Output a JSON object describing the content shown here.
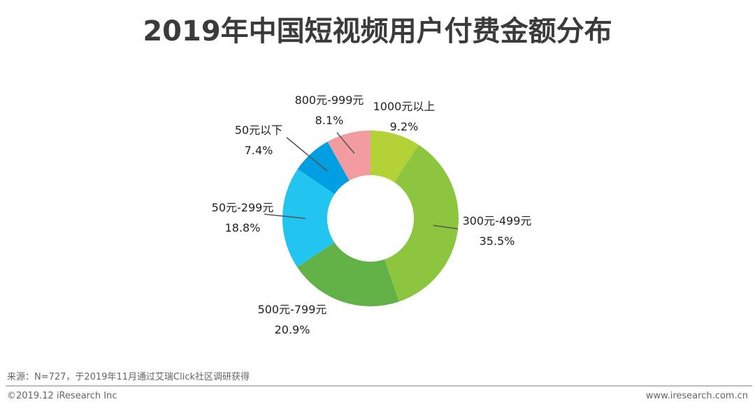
{
  "title": "2019年中国短视频用户付费金额分布",
  "chart_data": {
    "type": "pie",
    "variant": "donut",
    "title": "2019年中国短视频用户付费金额分布",
    "unit": "%",
    "slices": [
      {
        "label": "1000元以上",
        "value": 9.2,
        "display": "9.2%",
        "color": "#b2d235"
      },
      {
        "label": "300元-499元",
        "value": 35.5,
        "display": "35.5%",
        "color": "#8cc63f"
      },
      {
        "label": "500元-799元",
        "value": 20.9,
        "display": "20.9%",
        "color": "#62b146"
      },
      {
        "label": "50元-299元",
        "value": 18.8,
        "display": "18.8%",
        "color": "#22c4f0"
      },
      {
        "label": "50元以下",
        "value": 7.4,
        "display": "7.4%",
        "color": "#009fe3"
      },
      {
        "label": "800元-999元",
        "value": 8.1,
        "display": "8.1%",
        "color": "#f29c9f"
      }
    ],
    "start_angle": "12 o'clock",
    "direction": "clockwise",
    "legend": "none"
  },
  "footer": {
    "source": "来源：N=727，于2019年11月通过艾瑞Click社区调研获得",
    "copyright": "©2019.12 iResearch Inc",
    "website": "www.iresearch.com.cn"
  }
}
